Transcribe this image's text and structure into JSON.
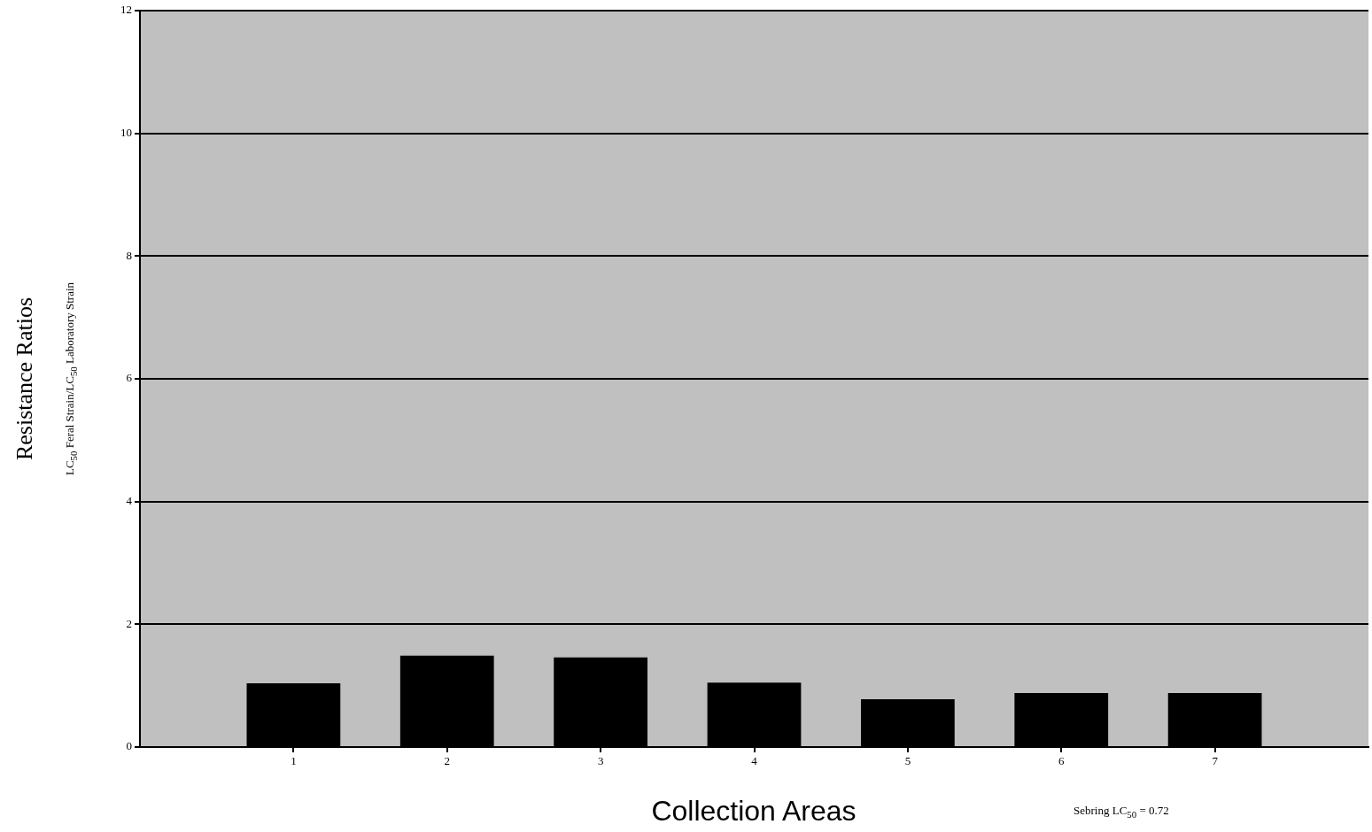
{
  "chart_data": {
    "type": "bar",
    "x": [
      1,
      2,
      3,
      4,
      5,
      6,
      7
    ],
    "values": [
      1.04,
      1.49,
      1.46,
      1.05,
      0.78,
      0.88,
      0.88
    ],
    "color": "#000000",
    "xlim": [
      0,
      8
    ],
    "xticks": [
      1,
      2,
      3,
      4,
      5,
      6,
      7
    ],
    "ylim": [
      0,
      12
    ],
    "yticks": [
      0,
      2,
      4,
      6,
      8,
      10,
      12
    ],
    "grid": "y",
    "xlabel": "Collection Areas",
    "ylabel": "Resistance Ratios\nLC$_{50}$ Feral Strain/LC$_{50}$ Laboratory Strain",
    "annotations": [
      "Sebring LC$_{50}$ = 0.72"
    ]
  }
}
